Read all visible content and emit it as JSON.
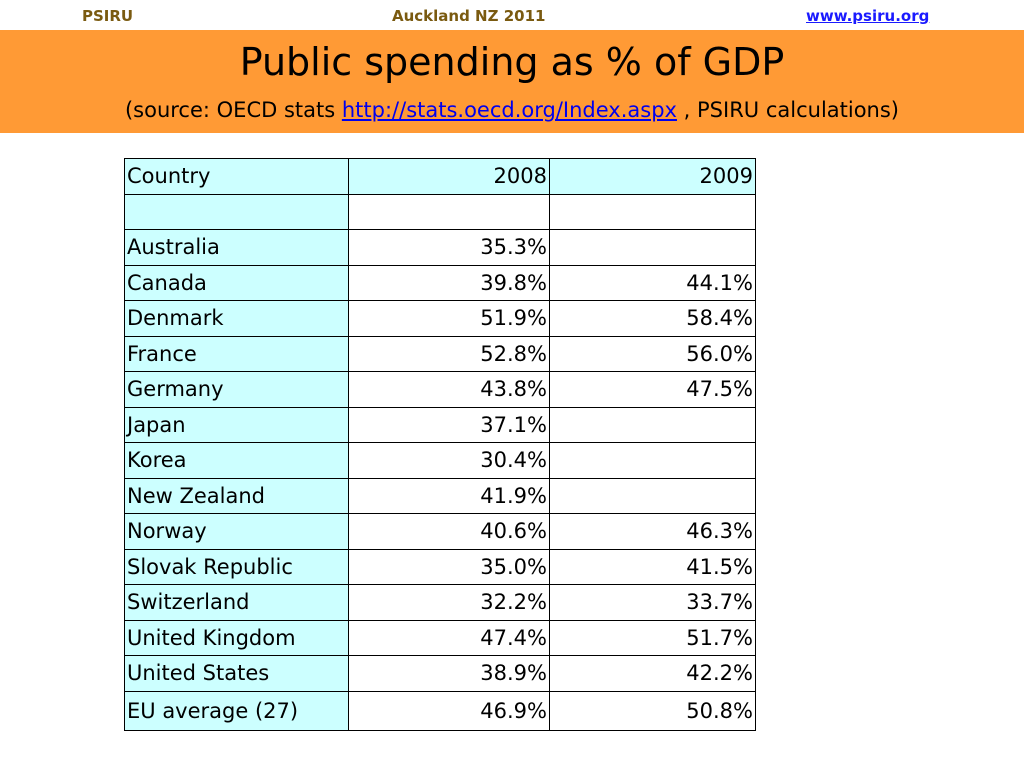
{
  "header": {
    "left": "PSIRU",
    "center": "Auckland NZ 2011",
    "right": "www.psiru.org"
  },
  "banner": {
    "title": "Public spending as % of GDP",
    "subtitle_prefix": "(source: OECD stats ",
    "subtitle_link": "http://stats.oecd.org/Index.aspx",
    "subtitle_suffix": " , PSIRU calculations)",
    "background": "#ff9a35"
  },
  "table": {
    "headers": [
      "Country",
      "2008",
      "2009"
    ],
    "rows": [
      [
        "",
        "",
        ""
      ],
      [
        "Australia",
        "35.3%",
        ""
      ],
      [
        "Canada",
        "39.8%",
        "44.1%"
      ],
      [
        "Denmark",
        "51.9%",
        "58.4%"
      ],
      [
        "France",
        "52.8%",
        "56.0%"
      ],
      [
        "Germany",
        "43.8%",
        "47.5%"
      ],
      [
        "Japan",
        "37.1%",
        ""
      ],
      [
        "Korea",
        "30.4%",
        ""
      ],
      [
        "New Zealand",
        "41.9%",
        ""
      ],
      [
        "Norway",
        "40.6%",
        "46.3%"
      ],
      [
        "Slovak Republic",
        "35.0%",
        "41.5%"
      ],
      [
        "Switzerland",
        "32.2%",
        "33.7%"
      ],
      [
        "United Kingdom",
        "47.4%",
        "51.7%"
      ],
      [
        "United States",
        "38.9%",
        "42.2%"
      ],
      [
        "EU average (27)",
        "46.9%",
        "50.8%"
      ]
    ]
  }
}
